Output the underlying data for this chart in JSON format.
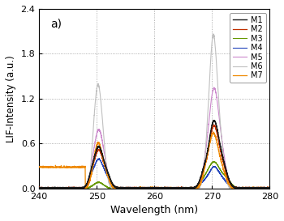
{
  "title": "a)",
  "xlabel": "Wavelength (nm)",
  "ylabel": "LIF-Intensity (a.u.)",
  "xlim": [
    240,
    280
  ],
  "ylim": [
    0,
    2.4
  ],
  "yticks": [
    0.0,
    0.6,
    1.2,
    1.8,
    2.4
  ],
  "xticks": [
    240,
    250,
    260,
    270,
    280
  ],
  "series_colors": {
    "M1": "#1a1a1a",
    "M2": "#c03000",
    "M3": "#669900",
    "M4": "#2244bb",
    "M5": "#cc88cc",
    "M6": "#c0c0c0",
    "M7": "#ee8800"
  },
  "background_color": "#ffffff",
  "grid_color": "#999999"
}
